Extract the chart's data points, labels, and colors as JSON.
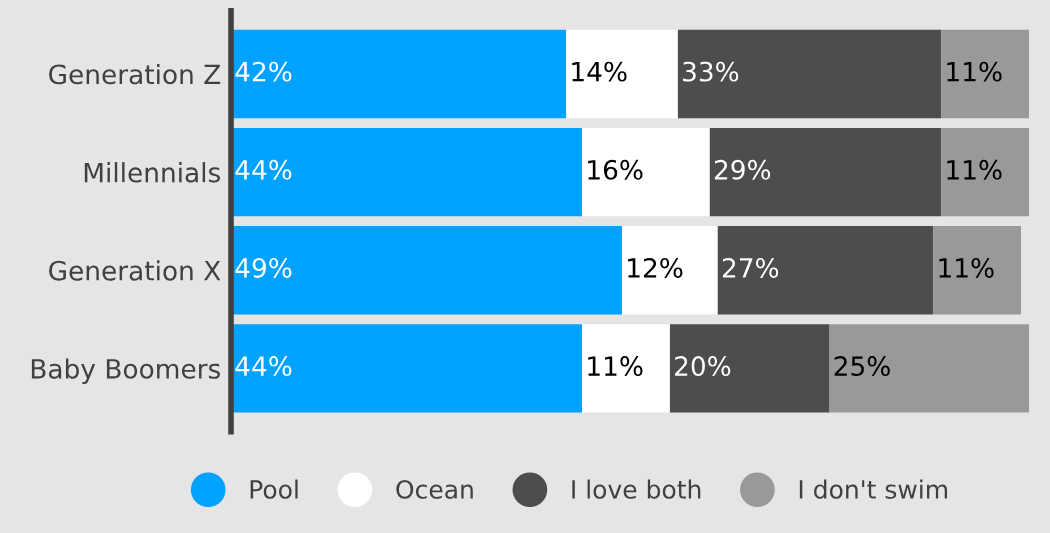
{
  "chart_data": {
    "type": "bar",
    "orientation": "horizontal",
    "stacked": true,
    "categories": [
      "Generation Z",
      "Millennials",
      "Generation X",
      "Baby Boomers"
    ],
    "series": [
      {
        "name": "Pool",
        "color": "#00a2ff",
        "values": [
          42,
          44,
          49,
          44
        ],
        "value_labels": [
          "42%",
          "44%",
          "49%",
          "44%"
        ]
      },
      {
        "name": "Ocean",
        "color": "#ffffff",
        "values": [
          14,
          16,
          12,
          11
        ],
        "value_labels": [
          "14%",
          "16%",
          "12%",
          "11%"
        ]
      },
      {
        "name": "I love both",
        "color": "#4d4d4d",
        "values": [
          33,
          29,
          27,
          20
        ],
        "value_labels": [
          "33%",
          "29%",
          "27%",
          "20%"
        ]
      },
      {
        "name": "I don't swim",
        "color": "#999999",
        "values": [
          11,
          11,
          11,
          25
        ],
        "value_labels": [
          "11%",
          "11%",
          "11%",
          "25%"
        ]
      }
    ],
    "tick_labels": "y",
    "legend": "bottom",
    "grid": false
  }
}
